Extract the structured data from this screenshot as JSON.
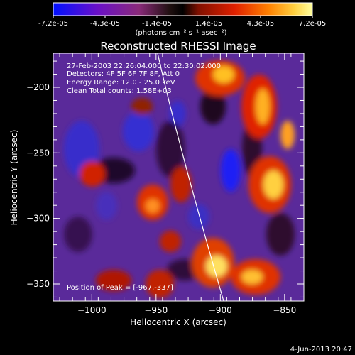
{
  "colorbar": {
    "ticks": [
      "-7.2e-05",
      "-4.3e-05",
      "-1.4e-05",
      "1.4e-05",
      "4.3e-05",
      "7.2e-05"
    ],
    "unit_label": "(photons cm⁻² s⁻¹ asec⁻²)"
  },
  "plot": {
    "title": "Reconstructed RHESSI Image",
    "xlabel": "Heliocentric X (arcsec)",
    "ylabel": "Heliocentric Y (arcsec)",
    "x_ticks": [
      "−1000",
      "−950",
      "−900",
      "−850"
    ],
    "y_ticks": [
      "−200",
      "−250",
      "−300",
      "−350"
    ],
    "x_range": [
      -1030,
      -835
    ],
    "y_range": [
      -363,
      -174
    ]
  },
  "annotations": {
    "time": "27-Feb-2003 22:26:04.000 to 22:30:02.000",
    "detectors": "Detectors: 4F 5F 6F 7F 8F, Att 0",
    "energy": "Energy Range: 12.0 - 25.0 keV",
    "clean": "Clean     Total counts: 1.58E+03",
    "peak": "Position of Peak = [-967,-337]"
  },
  "footer": {
    "timestamp": "4-Jun-2013 20:47"
  }
}
